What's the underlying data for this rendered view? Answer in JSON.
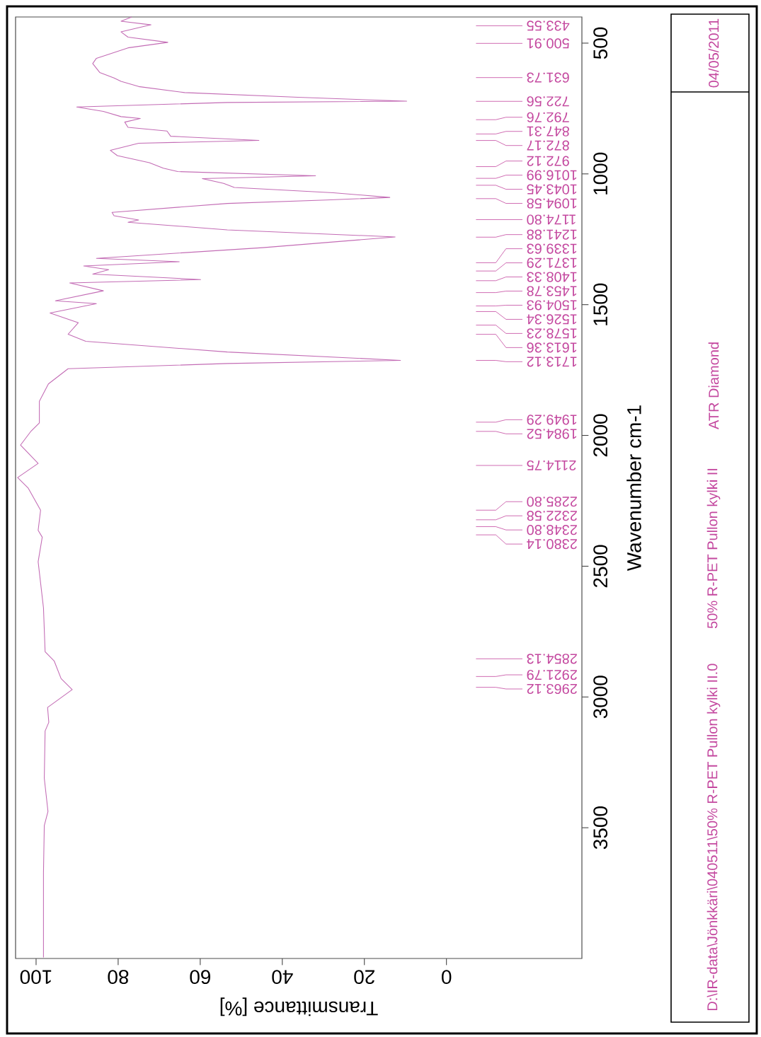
{
  "chart_data": {
    "type": "line",
    "xlabel": "Transmittance [%]",
    "ylabel": "Wavenumber cm-1",
    "xlim": [
      105,
      -33
    ],
    "ylim": [
      4000,
      400
    ],
    "xticks": [
      {
        "value": 0,
        "label": "0"
      },
      {
        "value": 20,
        "label": "20"
      },
      {
        "value": 40,
        "label": "40"
      },
      {
        "value": 60,
        "label": "60"
      },
      {
        "value": 80,
        "label": "80"
      },
      {
        "value": 100,
        "label": "100"
      }
    ],
    "yticks": [
      {
        "value": 500,
        "label": "500"
      },
      {
        "value": 1000,
        "label": "1000"
      },
      {
        "value": 1500,
        "label": "1500"
      },
      {
        "value": 2000,
        "label": "2000"
      },
      {
        "value": 2500,
        "label": "2500"
      },
      {
        "value": 3000,
        "label": "3000"
      },
      {
        "value": 3500,
        "label": "3500"
      }
    ],
    "grid": false,
    "series": [
      {
        "color": "#c36cb5",
        "values": [
          400,
          416,
          430,
          457,
          477,
          497,
          518,
          558,
          578,
          612,
          633,
          646,
          666,
          689,
          707,
          722,
          727,
          744,
          761,
          781,
          788,
          802,
          822,
          836,
          856,
          872,
          883,
          910,
          930,
          957,
          978,
          991,
          1007,
          1018,
          1036,
          1052,
          1072,
          1090,
          1100,
          1113,
          1147,
          1160,
          1176,
          1185,
          1214,
          1241,
          1282,
          1323,
          1336,
          1352,
          1366,
          1383,
          1404,
          1417,
          1447,
          1485,
          1496,
          1532,
          1569,
          1613,
          1640,
          1681,
          1713,
          1725,
          1745,
          1803,
          1869,
          1952,
          1983,
          2037,
          2107,
          2161,
          2202,
          2286,
          2363,
          2389,
          2483,
          2659,
          2827,
          2862,
          2930,
          2972,
          3040,
          3097,
          3130,
          3311,
          3438,
          3492,
          3671,
          3996
        ],
        "x": [
          76.7,
          79.3,
          72.0,
          79.3,
          77.6,
          67.9,
          77.6,
          85.3,
          86.2,
          84.5,
          81.0,
          79.3,
          75.0,
          63.8,
          36.2,
          9.7,
          53.4,
          90.1,
          83.6,
          79.3,
          74.6,
          78.4,
          77.6,
          68.1,
          67.2,
          45.7,
          75.0,
          81.9,
          80.2,
          72.4,
          69.0,
          65.5,
          31.9,
          59.5,
          54.3,
          51.7,
          27.6,
          13.8,
          29.3,
          53.4,
          81.5,
          81.0,
          75.0,
          77.6,
          53.4,
          12.5,
          44.8,
          85.3,
          65.1,
          88.4,
          82.3,
          86.2,
          59.9,
          91.8,
          83.6,
          95.3,
          85.3,
          96.6,
          89.7,
          92.2,
          87.9,
          53.4,
          11.2,
          53.4,
          92.2,
          97.0,
          99.2,
          99.2,
          101.2,
          103.8,
          99.5,
          104.5,
          101.9,
          98.9,
          99.5,
          98.5,
          99.5,
          98.2,
          97.8,
          95.6,
          93.9,
          91.2,
          97.2,
          96.9,
          97.8,
          98.0,
          97.1,
          98.0,
          98.2,
          98.2
        ]
      }
    ],
    "annotations": [
      "433.55",
      "500.91",
      "631.73",
      "722.56",
      "792.76",
      "847.31",
      "872.17",
      "972.12",
      "1016.99",
      "1043.45",
      "1094.58",
      "1174.80",
      "1241.88",
      "1339.63",
      "1371.29",
      "1408.33",
      "1453.78",
      "1504.93",
      "1526.34",
      "1578.23",
      "1613.36",
      "1713.12",
      "1949.29",
      "1984.52",
      "2114.75",
      "2285.80",
      "2322.58",
      "2348.80",
      "2380.14",
      "2854.13",
      "2921.79",
      "2963.12",
      "04/05/2011",
      "ATR Diamond",
      "50% R-PET Pullon kylki II",
      "D:\\IR-data\\Jönkkäri\\040511\\50% R-PET Pullon kylki II.0"
    ]
  }
}
